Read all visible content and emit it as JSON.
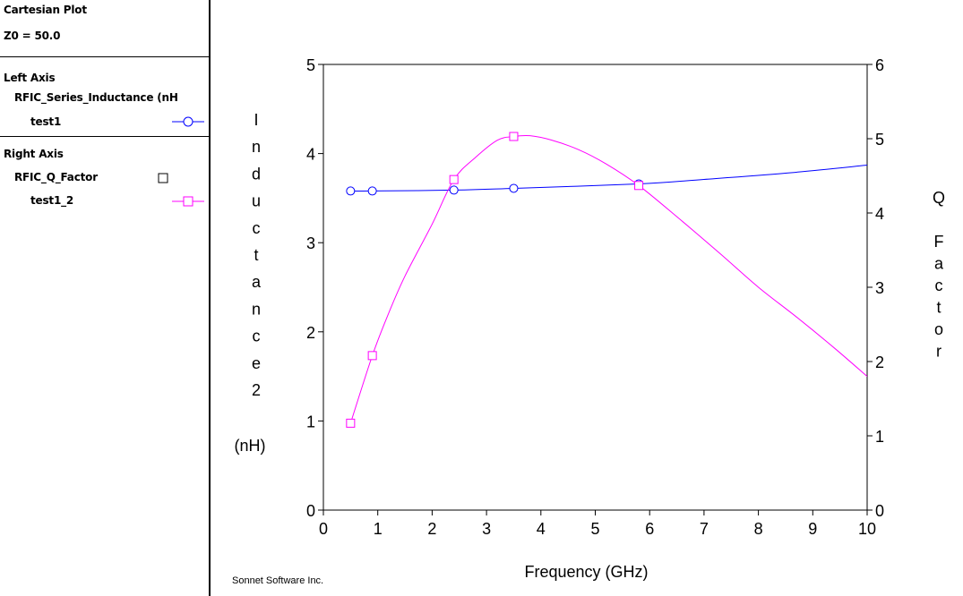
{
  "sidebar": {
    "header": {
      "title": "Cartesian Plot",
      "z0": "Z0 = 50.0"
    },
    "left_axis": {
      "heading": "Left Axis",
      "measurement": "RFIC_Series_Inductance (nH",
      "trace": "test1",
      "trace_color": "#0000ff",
      "trace_marker": "circle-icon"
    },
    "right_axis": {
      "heading": "Right Axis",
      "measurement": "RFIC_Q_Factor",
      "measurement_marker": "square-icon",
      "trace": "test1_2",
      "trace_color": "#ff00ff",
      "trace_marker": "square-icon"
    }
  },
  "footer": {
    "credit": "Sonnet Software Inc."
  },
  "chart_data": {
    "type": "line",
    "title": "",
    "xlabel": "Frequency (GHz)",
    "ylabel_chars": [
      "I",
      "n",
      "d",
      "u",
      "c",
      "t",
      "a",
      "n",
      "c",
      "e",
      "2"
    ],
    "ylabel_unit": "(nH)",
    "y2label_chars": [
      "Q",
      "",
      "F",
      "a",
      "c",
      "t",
      "o",
      "r"
    ],
    "xlim": [
      0,
      10
    ],
    "ylim": [
      0,
      5
    ],
    "y2lim": [
      0,
      6
    ],
    "x_ticks": [
      "0",
      "1",
      "2",
      "3",
      "4",
      "5",
      "6",
      "7",
      "8",
      "9",
      "10"
    ],
    "y_ticks": [
      "0",
      "1",
      "2",
      "3",
      "4",
      "5"
    ],
    "y2_ticks": [
      "0",
      "1",
      "2",
      "3",
      "4",
      "5",
      "6"
    ],
    "grid": false,
    "series": [
      {
        "name": "test1",
        "axis": "left",
        "color": "#0000ff",
        "marker": "circle",
        "x": [
          0.5,
          0.9,
          2.4,
          3.5,
          5.8,
          7.0,
          8.5,
          10.0
        ],
        "y": [
          3.58,
          3.58,
          3.59,
          3.61,
          3.66,
          3.71,
          3.78,
          3.87
        ],
        "marker_x": [
          0.5,
          0.9,
          2.4,
          3.5,
          5.8
        ]
      },
      {
        "name": "test1_2",
        "axis": "right",
        "color": "#ff00ff",
        "marker": "square",
        "x": [
          0.5,
          0.9,
          1.2,
          1.5,
          2.0,
          2.4,
          2.8,
          3.2,
          3.5,
          3.8,
          4.2,
          4.7,
          5.2,
          5.8,
          6.5,
          7.3,
          8.0,
          8.7,
          9.4,
          10.0
        ],
        "y": [
          1.17,
          2.08,
          2.65,
          3.15,
          3.85,
          4.45,
          4.75,
          4.98,
          5.03,
          5.04,
          4.98,
          4.85,
          4.66,
          4.37,
          3.95,
          3.45,
          3.0,
          2.6,
          2.18,
          1.8
        ],
        "marker_x": [
          0.5,
          0.9,
          2.4,
          3.5,
          5.8
        ],
        "marker_y": [
          1.17,
          2.08,
          4.45,
          5.03,
          4.37
        ]
      }
    ]
  }
}
